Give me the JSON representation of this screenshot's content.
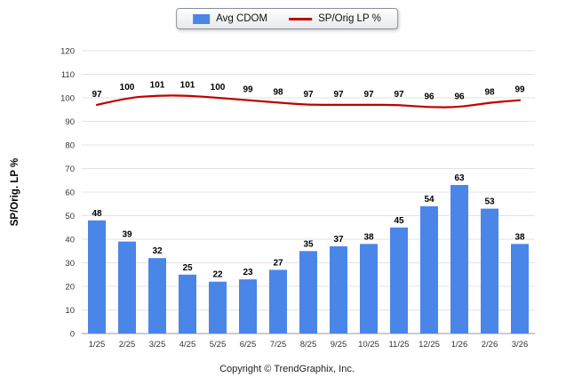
{
  "chart_data": {
    "type": "bar+line",
    "categories": [
      "1/25",
      "2/25",
      "3/25",
      "4/25",
      "5/25",
      "6/25",
      "7/25",
      "8/25",
      "9/25",
      "10/25",
      "11/25",
      "12/25",
      "1/26",
      "2/26",
      "3/26"
    ],
    "series": [
      {
        "name": "Avg CDOM",
        "type": "bar",
        "color": "#4a86e8",
        "values": [
          48,
          39,
          32,
          25,
          22,
          23,
          27,
          35,
          37,
          38,
          45,
          54,
          63,
          53,
          38
        ]
      },
      {
        "name": "SP/Orig LP %",
        "type": "line",
        "color": "#c00000",
        "values": [
          97,
          100,
          101,
          101,
          100,
          99,
          98,
          97,
          97,
          97,
          97,
          96,
          96,
          98,
          99
        ]
      }
    ],
    "title": "",
    "xlabel": "",
    "ylabel": "SP/Orig. LP %",
    "ylim": [
      0,
      120
    ],
    "ytick_step": 10,
    "grid": true,
    "legend_position": "top-center"
  },
  "footer": {
    "copyright": "Copyright © TrendGraphix, Inc."
  }
}
